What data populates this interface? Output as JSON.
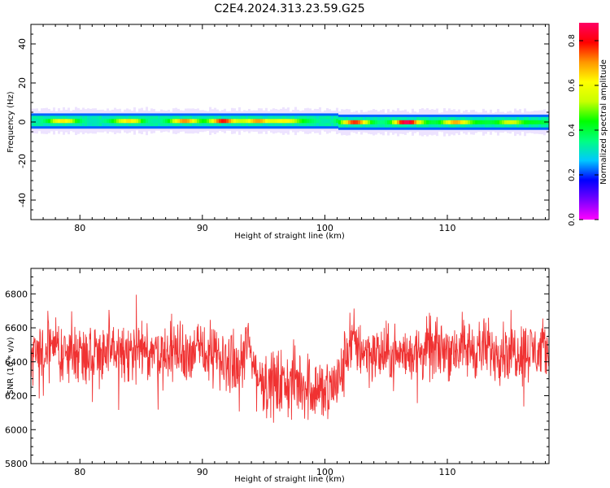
{
  "title": "C2E4.2024.313.23.59.G25",
  "colors": {
    "snr_line": "#f03232",
    "background": "#ffffff",
    "axis": "#000000"
  },
  "chart_data": [
    {
      "type": "heatmap",
      "xlabel": "Height of straight line (km)",
      "ylabel": "Frequency (Hz)",
      "xlim": [
        76,
        118.3
      ],
      "ylim": [
        -50,
        50
      ],
      "x_ticks": [
        "80",
        "90",
        "100",
        "110"
      ],
      "y_ticks": [
        "-40",
        "-20",
        "0",
        "20",
        "40"
      ],
      "colorbar": {
        "label": "Normalized spectral amplitude",
        "range": [
          0.0,
          0.88
        ],
        "ticks": [
          "0.0",
          "0.2",
          "0.4",
          "0.6",
          "0.8"
        ],
        "stops": [
          "#ff00ff",
          "#7800ff",
          "#0000ff",
          "#00c8ff",
          "#00ff80",
          "#00ff00",
          "#c8ff00",
          "#ffff00",
          "#ff9600",
          "#ff0000",
          "#ff0064"
        ]
      },
      "band": {
        "center_hz": 0.5,
        "half_width_hz": 3.5
      },
      "hotspots": [
        {
          "x": 78.5,
          "amp": 0.58
        },
        {
          "x": 84,
          "amp": 0.6
        },
        {
          "x": 88.5,
          "amp": 0.66
        },
        {
          "x": 91.5,
          "amp": 0.8
        },
        {
          "x": 94.5,
          "amp": 0.7
        },
        {
          "x": 96.5,
          "amp": 0.62
        },
        {
          "x": 102.3,
          "amp": 0.72
        },
        {
          "x": 106.5,
          "amp": 0.85
        },
        {
          "x": 110.5,
          "amp": 0.72
        },
        {
          "x": 115,
          "amp": 0.6
        }
      ]
    },
    {
      "type": "line",
      "xlabel": "Height of straight line (km)",
      "ylabel": "SNR (10 * v/v)",
      "xlim": [
        76,
        118.3
      ],
      "ylim": [
        5800,
        6950
      ],
      "x_ticks": [
        "80",
        "90",
        "100",
        "110"
      ],
      "y_ticks": [
        "5800",
        "6000",
        "6200",
        "6400",
        "6600",
        "6800"
      ],
      "series": [
        {
          "points": 1500,
          "profile": [
            {
              "x": 76,
              "mean": 6460,
              "amp": 230
            },
            {
              "x": 90,
              "mean": 6460,
              "amp": 240
            },
            {
              "x": 92,
              "mean": 6400,
              "amp": 240
            },
            {
              "x": 93,
              "mean": 6340,
              "amp": 230
            },
            {
              "x": 93.7,
              "mean": 6520,
              "amp": 230
            },
            {
              "x": 94.5,
              "mean": 6300,
              "amp": 240
            },
            {
              "x": 96,
              "mean": 6260,
              "amp": 270
            },
            {
              "x": 98,
              "mean": 6280,
              "amp": 270
            },
            {
              "x": 100,
              "mean": 6220,
              "amp": 260
            },
            {
              "x": 101.3,
              "mean": 6300,
              "amp": 260
            },
            {
              "x": 102,
              "mean": 6520,
              "amp": 250
            },
            {
              "x": 104,
              "mean": 6440,
              "amp": 230
            },
            {
              "x": 106,
              "mean": 6440,
              "amp": 210
            },
            {
              "x": 110,
              "mean": 6480,
              "amp": 230
            },
            {
              "x": 118.3,
              "mean": 6460,
              "amp": 230
            }
          ]
        }
      ]
    }
  ]
}
